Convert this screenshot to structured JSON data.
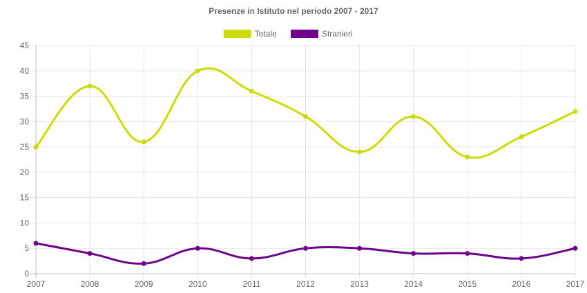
{
  "chart_data": {
    "type": "line",
    "title": "Presenze in Istituto nel periodo 2007 - 2017",
    "categories": [
      "2007",
      "2008",
      "2009",
      "2010",
      "2011",
      "2012",
      "2013",
      "2014",
      "2015",
      "2016",
      "2017"
    ],
    "series": [
      {
        "name": "Totale",
        "color": "#cddc00",
        "values": [
          25,
          37,
          26,
          40,
          36,
          31,
          24,
          31,
          23,
          27,
          32
        ]
      },
      {
        "name": "Stranieri",
        "color": "#6f008c",
        "values": [
          6,
          4,
          2,
          5,
          3,
          5,
          5,
          4,
          4,
          3,
          5
        ]
      }
    ],
    "ylim": [
      0,
      45
    ],
    "yticks": [
      0,
      5,
      10,
      15,
      20,
      25,
      30,
      35,
      40,
      45
    ],
    "grid": true,
    "legend_position": "top"
  }
}
